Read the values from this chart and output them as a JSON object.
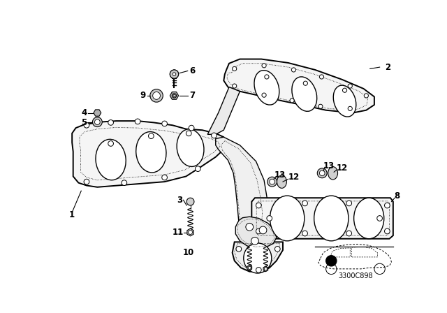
{
  "background_color": "#ffffff",
  "fig_width": 6.4,
  "fig_height": 4.48,
  "dpi": 100,
  "code": "3300C898",
  "line_color": "#000000",
  "text_color": "#000000",
  "font_size": 8.5
}
